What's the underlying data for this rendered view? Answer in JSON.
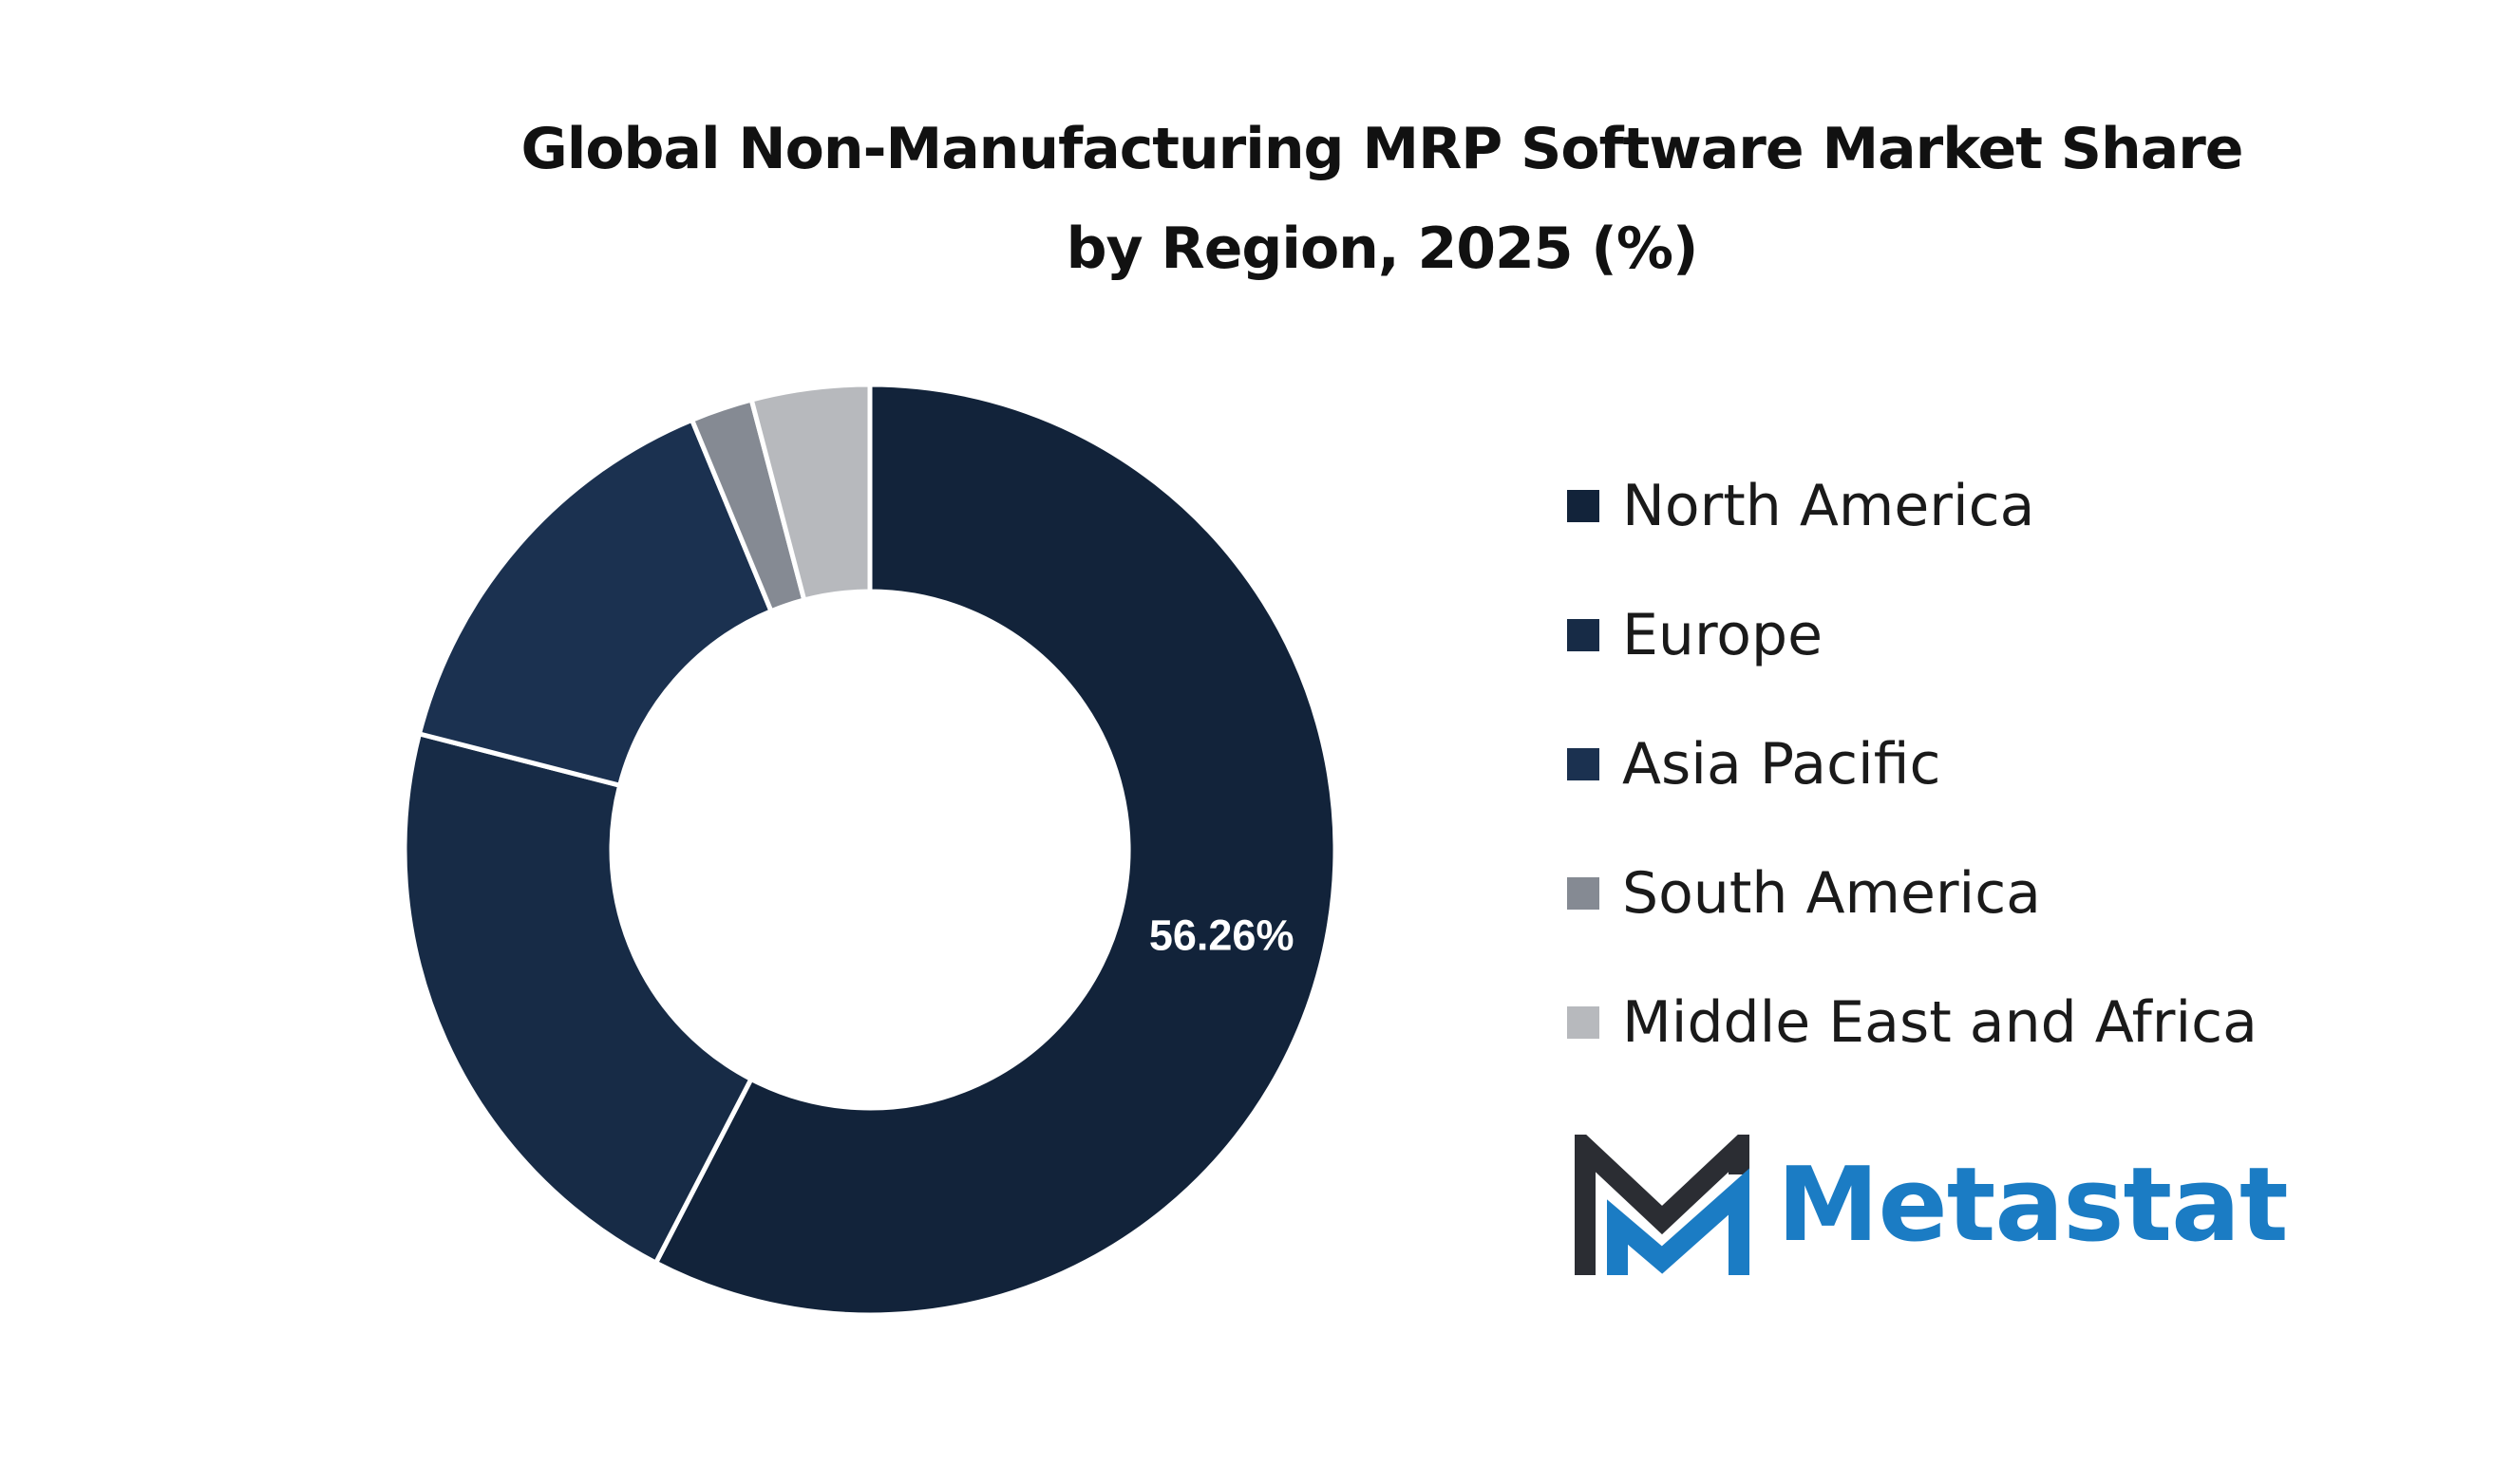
{
  "colors": {
    "background": "#ffffff",
    "slice_separator": "#ffffff",
    "brand_blue": "#1b7cc4",
    "brand_dark": "#2b2d33"
  },
  "chart_data": {
    "type": "pie",
    "style": "donut",
    "title": "Global Non-Manufacturing MRP Software Market Share by Region, 2025 (%)",
    "title_lines": [
      "Global Non-Manufacturing MRP Software Market Share",
      "by Region, 2025 (%)"
    ],
    "legend_position": "right",
    "slices": [
      {
        "label": "North America",
        "value": 56.26,
        "display_label": "56.26%",
        "color": "#12233a"
      },
      {
        "label": "Europe",
        "value": 20.9,
        "display_label": "",
        "color": "#172b46"
      },
      {
        "label": "Asia Pacific",
        "value": 14.4,
        "display_label": "",
        "color": "#1b3150"
      },
      {
        "label": "South America",
        "value": 2.1,
        "display_label": "",
        "color": "#858a93"
      },
      {
        "label": "Middle East and Africa",
        "value": 4.0,
        "display_label": "",
        "color": "#b7b9bd"
      }
    ]
  },
  "legend": {
    "items": [
      "North America",
      "Europe",
      "Asia Pacific",
      "South America",
      "Middle East and Africa"
    ]
  },
  "brand": {
    "name": "Metastat",
    "logo_icon": "metastat-m-logo-icon"
  }
}
